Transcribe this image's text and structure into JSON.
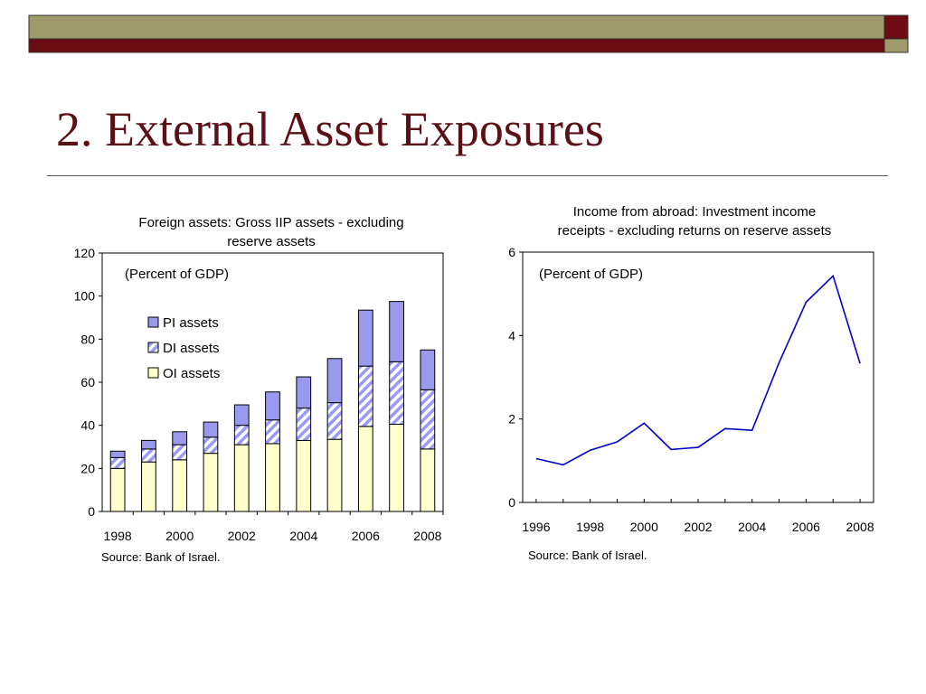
{
  "slide": {
    "title": "2. External Asset Exposures"
  },
  "theme": {
    "banner_olive": "#9e9a6c",
    "banner_maroon": "#6b0c12",
    "title_color": "#5c0f15"
  },
  "left_chart": {
    "source": "Source: Bank of Israel."
  },
  "right_chart": {
    "source": "Source: Bank of Israel."
  },
  "chart_data": [
    {
      "type": "bar",
      "stacked": true,
      "title_lines": [
        "Foreign assets: Gross IIP assets - excluding",
        "reserve assets"
      ],
      "annotation": "(Percent of GDP)",
      "categories": [
        "1998",
        "1999",
        "2000",
        "2001",
        "2002",
        "2003",
        "2004",
        "2005",
        "2006",
        "2007",
        "2008"
      ],
      "x_tick_labels": [
        "1998",
        "",
        "2000",
        "",
        "2002",
        "",
        "2004",
        "",
        "2006",
        "",
        "2008"
      ],
      "series": [
        {
          "name": "OI assets",
          "values": [
            20,
            23,
            24,
            27,
            31,
            31.5,
            33,
            33.5,
            39.5,
            40.5,
            29
          ],
          "fill": "#ffffcc",
          "pattern": "none"
        },
        {
          "name": "DI assets",
          "values": [
            5,
            6,
            7,
            7.5,
            9,
            11,
            15,
            17,
            28,
            29,
            27.5
          ],
          "fill": "#ffffff",
          "pattern": "diagonal",
          "stripe_color": "#9999ff"
        },
        {
          "name": "PI assets",
          "values": [
            3,
            4,
            6,
            7,
            9.5,
            13,
            14.5,
            20.5,
            26,
            28,
            18.5
          ],
          "fill": "#9999ee",
          "pattern": "none"
        }
      ],
      "legend_order": [
        "PI assets",
        "DI assets",
        "OI assets"
      ],
      "legend_position": "upper-left",
      "ylim": [
        0,
        120
      ],
      "yticks": [
        0,
        20,
        40,
        60,
        80,
        100,
        120
      ],
      "xlabel": "",
      "ylabel": ""
    },
    {
      "type": "line",
      "title_lines": [
        "Income from abroad: Investment income",
        "receipts - excluding returns on reserve assets"
      ],
      "annotation": "(Percent of GDP)",
      "x": [
        1996,
        1997,
        1998,
        1999,
        2000,
        2001,
        2002,
        2003,
        2004,
        2005,
        2006,
        2007,
        2008
      ],
      "x_tick_labels": [
        "1996",
        "1998",
        "2000",
        "2002",
        "2004",
        "2006",
        "2008"
      ],
      "series": [
        {
          "values": [
            1.05,
            0.9,
            1.25,
            1.45,
            1.9,
            1.27,
            1.32,
            1.77,
            1.73,
            3.35,
            4.8,
            5.43,
            3.33
          ],
          "color": "#0000cc"
        }
      ],
      "xlim": [
        1995.5,
        2008.5
      ],
      "ylim": [
        0,
        6
      ],
      "yticks": [
        0,
        2,
        4,
        6
      ],
      "xlabel": "",
      "ylabel": ""
    }
  ]
}
